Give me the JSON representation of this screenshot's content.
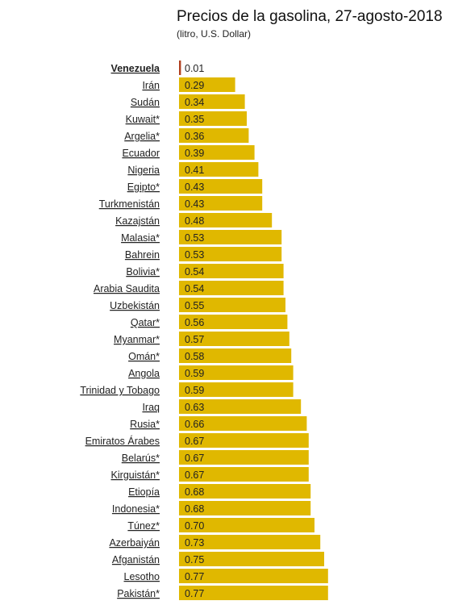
{
  "colors": {
    "bar": "#e0b800",
    "highlight_bar": "#b04020",
    "text": "#222222"
  },
  "chart_data": {
    "type": "bar",
    "orientation": "horizontal",
    "title": "Precios de la gasolina, 27-agosto-2018",
    "subtitle": "(litro, U.S. Dollar)",
    "highlighted_category": "Venezuela",
    "value_labels": [
      "0.01",
      "0.29",
      "0.34",
      "0.35",
      "0.36",
      "0.39",
      "0.41",
      "0.43",
      "0.43",
      "0.48",
      "0.53",
      "0.53",
      "0.54",
      "0.54",
      "0.55",
      "0.56",
      "0.57",
      "0.58",
      "0.59",
      "0.59",
      "0.63",
      "0.66",
      "0.67",
      "0.67",
      "0.67",
      "0.68",
      "0.68",
      "0.70",
      "0.73",
      "0.75",
      "0.77",
      "0.77"
    ],
    "categories": [
      "Venezuela",
      "Irán",
      "Sudán",
      "Kuwait*",
      "Argelia*",
      "Ecuador",
      "Nigeria",
      "Egipto*",
      "Turkmenistán",
      "Kazajstán",
      "Malasia*",
      "Bahrein",
      "Bolivia*",
      "Arabia Saudita",
      "Uzbekistán",
      "Qatar*",
      "Myanmar*",
      "Omán*",
      "Angola",
      "Trinidad y Tobago",
      "Iraq",
      "Rusia*",
      "Emiratos Árabes",
      "Belarús*",
      "Kirguistán*",
      "Etiopía",
      "Indonesia*",
      "Túnez*",
      "Azerbaiyán",
      "Afganistán",
      "Lesotho",
      "Pakistán*"
    ],
    "values": [
      0.01,
      0.29,
      0.34,
      0.35,
      0.36,
      0.39,
      0.41,
      0.43,
      0.43,
      0.48,
      0.53,
      0.53,
      0.54,
      0.54,
      0.55,
      0.56,
      0.57,
      0.58,
      0.59,
      0.59,
      0.63,
      0.66,
      0.67,
      0.67,
      0.67,
      0.68,
      0.68,
      0.7,
      0.73,
      0.75,
      0.77,
      0.77
    ]
  }
}
